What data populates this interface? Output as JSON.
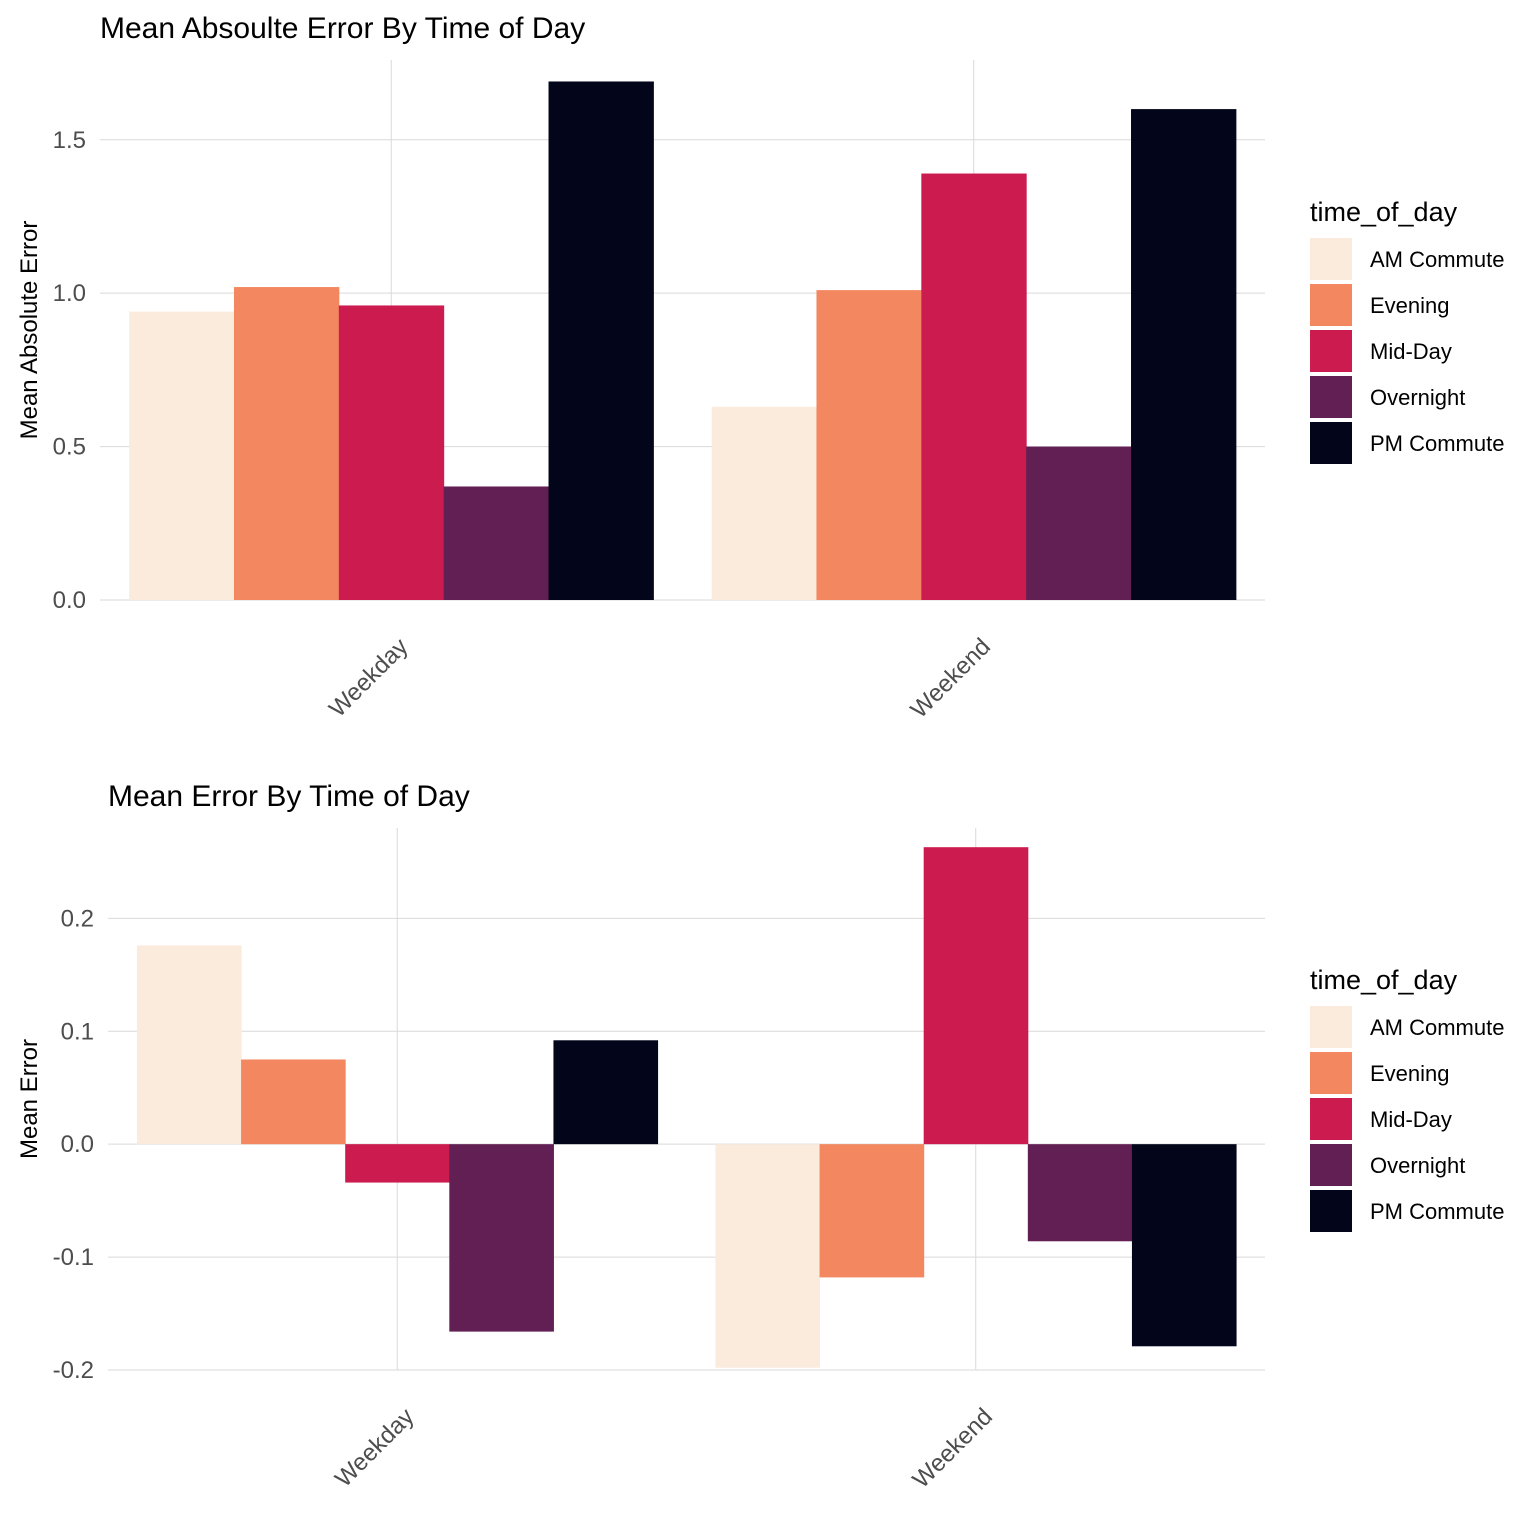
{
  "chart_data": [
    {
      "type": "bar",
      "title": "Mean Absoulte Error By Time of Day",
      "xlabel": "",
      "ylabel": "Mean Absolute Error",
      "categories": [
        "Weekday",
        "Weekend"
      ],
      "ylim": [
        0,
        1.76
      ],
      "yticks": [
        0.0,
        0.5,
        1.0,
        1.5
      ],
      "ytick_labels": [
        "0.0",
        "0.5",
        "1.0",
        "1.5"
      ],
      "grid": true,
      "legend": {
        "title": "time_of_day",
        "position": "right"
      },
      "series": [
        {
          "name": "AM Commute",
          "color": "#FAEBDD",
          "values": [
            0.94,
            0.63
          ]
        },
        {
          "name": "Evening",
          "color": "#F3875F",
          "values": [
            1.02,
            1.01
          ]
        },
        {
          "name": "Mid-Day",
          "color": "#CB1B4F",
          "values": [
            0.96,
            1.39
          ]
        },
        {
          "name": "Overnight",
          "color": "#611F53",
          "values": [
            0.37,
            0.5
          ]
        },
        {
          "name": "PM Commute",
          "color": "#03051A",
          "values": [
            1.69,
            1.6
          ]
        }
      ]
    },
    {
      "type": "bar",
      "title": "Mean Error By Time of Day",
      "xlabel": "",
      "ylabel": "Mean Error",
      "categories": [
        "Weekday",
        "Weekend"
      ],
      "ylim": [
        -0.2,
        0.28
      ],
      "yticks": [
        -0.2,
        -0.1,
        0.0,
        0.1,
        0.2
      ],
      "ytick_labels": [
        "-0.2",
        "-0.1",
        "0.0",
        "0.1",
        "0.2"
      ],
      "grid": true,
      "legend": {
        "title": "time_of_day",
        "position": "right"
      },
      "series": [
        {
          "name": "AM Commute",
          "color": "#FAEBDD",
          "values": [
            0.176,
            -0.198
          ]
        },
        {
          "name": "Evening",
          "color": "#F3875F",
          "values": [
            0.075,
            -0.118
          ]
        },
        {
          "name": "Mid-Day",
          "color": "#CB1B4F",
          "values": [
            -0.034,
            0.263
          ]
        },
        {
          "name": "Overnight",
          "color": "#611F53",
          "values": [
            -0.166,
            -0.086
          ]
        },
        {
          "name": "PM Commute",
          "color": "#03051A",
          "values": [
            0.092,
            -0.179
          ]
        }
      ]
    }
  ]
}
